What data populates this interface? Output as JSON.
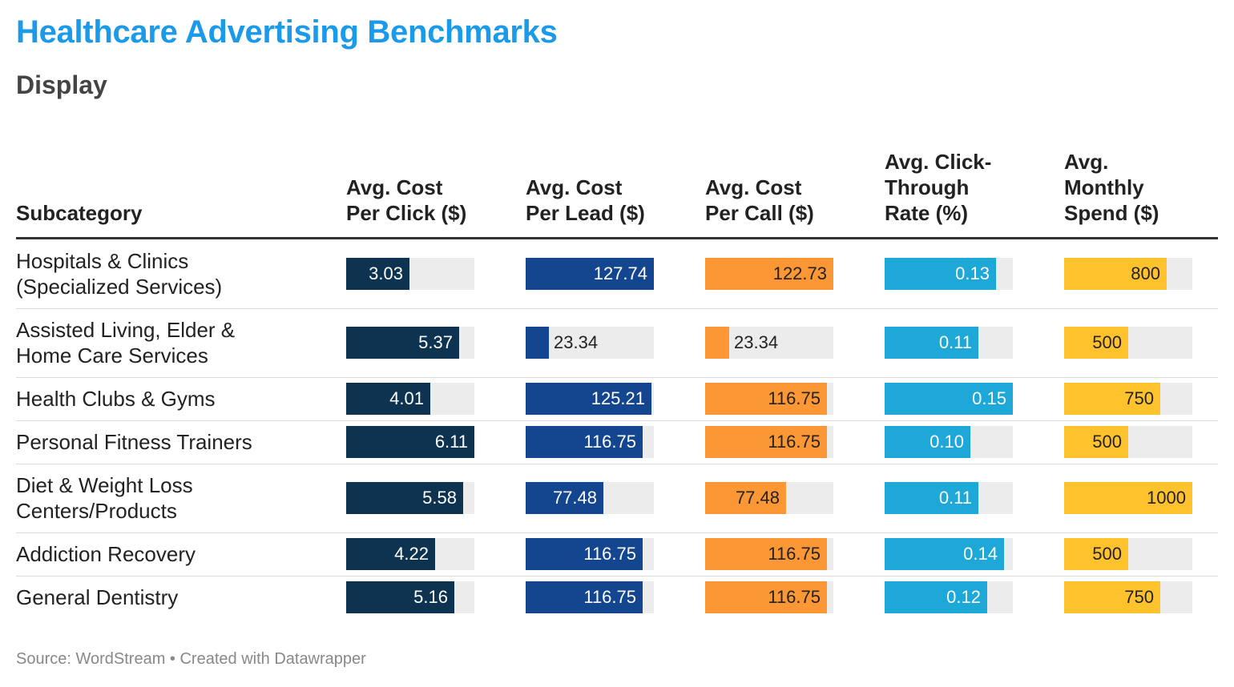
{
  "title": "Healthcare Advertising Benchmarks",
  "subtitle": "Display",
  "source": "Source: WordStream • Created with Datawrapper",
  "chart_data": {
    "type": "table",
    "columns": [
      {
        "key": "subcategory",
        "lines": [
          "Subcategory"
        ]
      },
      {
        "key": "cpc",
        "lines": [
          "Avg. Cost",
          "Per Click ($)"
        ],
        "color": "#0d3350",
        "text_color": "#ffffff",
        "max": 6.11
      },
      {
        "key": "cpl",
        "lines": [
          "Avg. Cost",
          "Per Lead ($)"
        ],
        "color": "#14458f",
        "text_color": "#ffffff",
        "max": 127.74
      },
      {
        "key": "cpcall",
        "lines": [
          "Avg. Cost",
          "Per Call ($)"
        ],
        "color": "#fc9735",
        "text_color": "#222222",
        "max": 122.73
      },
      {
        "key": "ctr",
        "lines": [
          "Avg. Click-",
          "Through",
          "Rate (%)"
        ],
        "color": "#1da8d7",
        "text_color": "#ffffff",
        "max": 0.15
      },
      {
        "key": "spend",
        "lines": [
          "Avg.",
          "Monthly",
          "Spend ($)"
        ],
        "color": "#fec22c",
        "text_color": "#222222",
        "max": 1000
      }
    ],
    "rows": [
      {
        "lines": [
          "Hospitals & Clinics",
          "(Specialized Services)"
        ],
        "values": [
          "3.03",
          "127.74",
          "122.73",
          "0.13",
          "800"
        ]
      },
      {
        "lines": [
          "Assisted Living, Elder &",
          "Home Care Services"
        ],
        "values": [
          "5.37",
          "23.34",
          "23.34",
          "0.11",
          "500"
        ]
      },
      {
        "lines": [
          "Health Clubs & Gyms"
        ],
        "values": [
          "4.01",
          "125.21",
          "116.75",
          "0.15",
          "750"
        ]
      },
      {
        "lines": [
          "Personal Fitness Trainers"
        ],
        "values": [
          "6.11",
          "116.75",
          "116.75",
          "0.10",
          "500"
        ]
      },
      {
        "lines": [
          "Diet & Weight Loss",
          "Centers/Products"
        ],
        "values": [
          "5.58",
          "77.48",
          "77.48",
          "0.11",
          "1000"
        ]
      },
      {
        "lines": [
          "Addiction Recovery"
        ],
        "values": [
          "4.22",
          "116.75",
          "116.75",
          "0.14",
          "500"
        ]
      },
      {
        "lines": [
          "General Dentistry"
        ],
        "values": [
          "5.16",
          "116.75",
          "116.75",
          "0.12",
          "750"
        ]
      }
    ]
  }
}
